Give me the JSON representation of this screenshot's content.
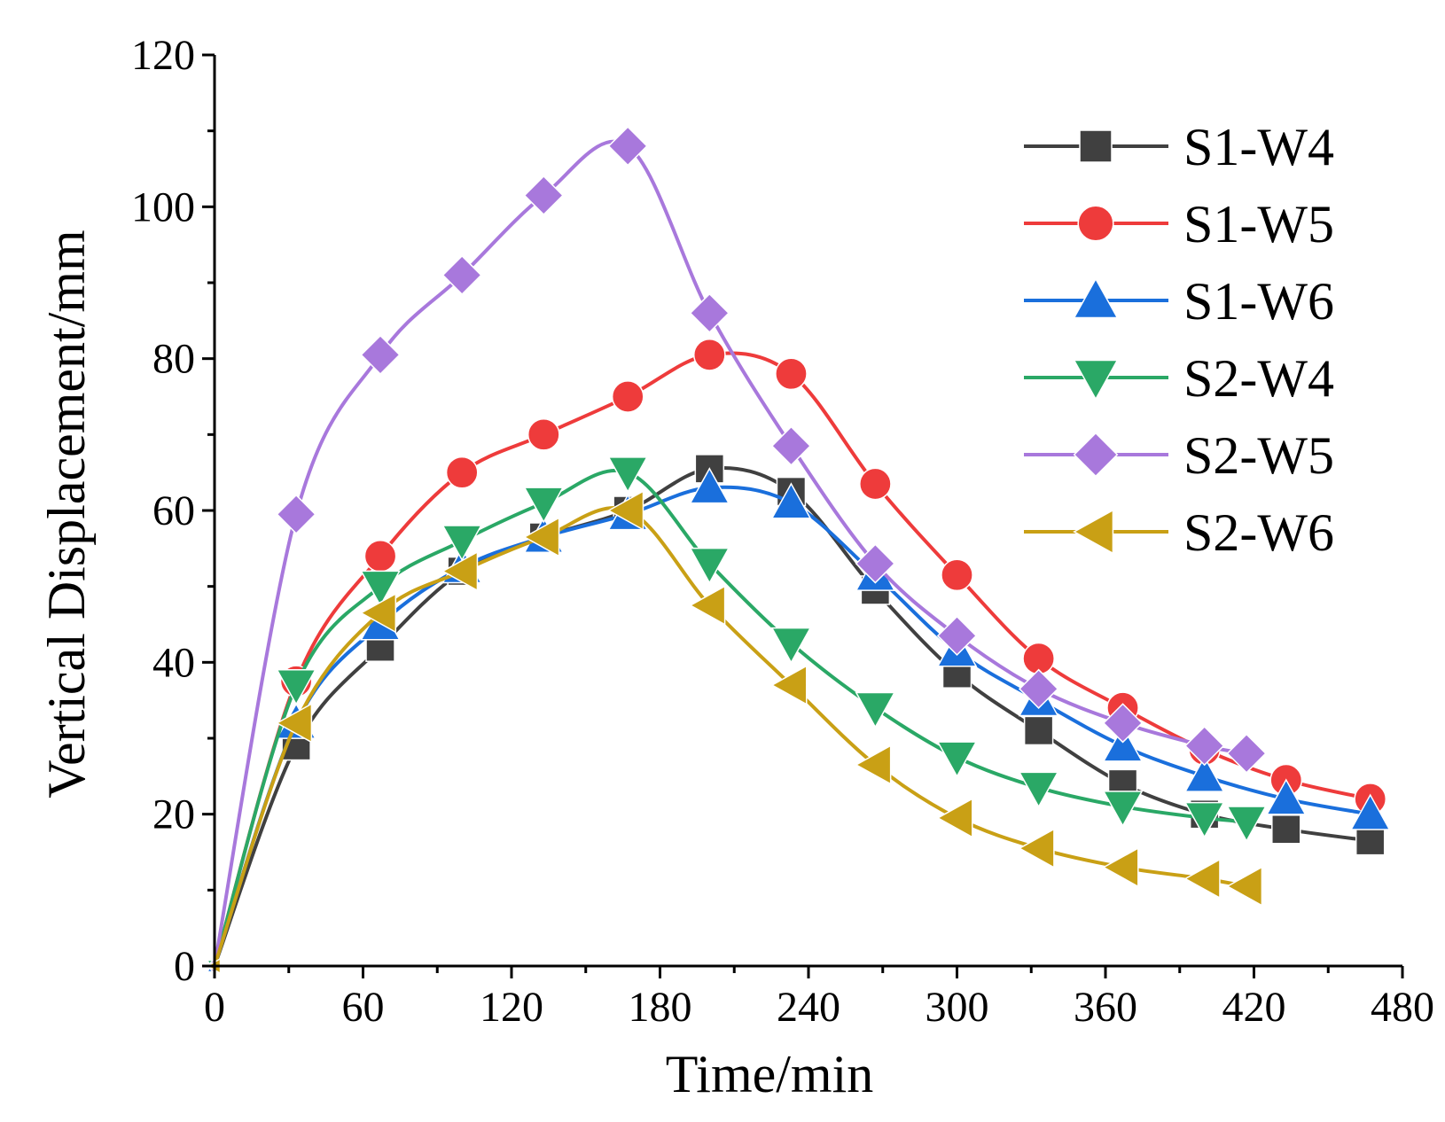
{
  "chart_data": {
    "type": "line",
    "title": "",
    "xlabel": "Time/min",
    "ylabel": "Vertical Displacement/mm",
    "xlim": [
      0,
      480
    ],
    "ylim": [
      0,
      120
    ],
    "xticks": [
      0,
      60,
      120,
      180,
      240,
      300,
      360,
      420,
      480
    ],
    "yticks": [
      0,
      20,
      40,
      60,
      80,
      100,
      120
    ],
    "xtick_labels": [
      "0",
      "60",
      "120",
      "180",
      "240",
      "300",
      "360",
      "420",
      "480"
    ],
    "ytick_labels": [
      "0",
      "20",
      "40",
      "60",
      "80",
      "100",
      "120"
    ],
    "grid": false,
    "legend_position": "top-right",
    "series": [
      {
        "name": "S1-W4",
        "color": "#404040",
        "marker": "square",
        "x": [
          0,
          33,
          67,
          100,
          133,
          167,
          200,
          233,
          267,
          300,
          333,
          367,
          400,
          433,
          467
        ],
        "y": [
          0,
          29,
          42,
          52,
          56.5,
          60,
          65.5,
          62.5,
          49.5,
          38.5,
          31,
          24,
          20,
          18,
          16.5
        ]
      },
      {
        "name": "S1-W5",
        "color": "#ee3b3b",
        "marker": "circle",
        "x": [
          0,
          33,
          67,
          100,
          133,
          167,
          200,
          233,
          267,
          300,
          333,
          367,
          400,
          433,
          467
        ],
        "y": [
          0,
          37.5,
          54,
          65,
          70,
          75,
          80.5,
          78,
          63.5,
          51.5,
          40.5,
          34,
          28.5,
          24.5,
          22
        ]
      },
      {
        "name": "S1-W6",
        "color": "#1a6fdc",
        "marker": "triangle-up",
        "x": [
          0,
          33,
          67,
          100,
          133,
          167,
          200,
          233,
          267,
          300,
          333,
          367,
          400,
          433,
          467
        ],
        "y": [
          0,
          32,
          45,
          52.5,
          56.5,
          59.5,
          63,
          61,
          51.5,
          41.5,
          35,
          29,
          25,
          22,
          20
        ]
      },
      {
        "name": "S2-W4",
        "color": "#2aa866",
        "marker": "triangle-down",
        "x": [
          0,
          33,
          67,
          100,
          133,
          167,
          200,
          233,
          267,
          300,
          333,
          367,
          400,
          417
        ],
        "y": [
          0,
          37,
          50,
          56,
          61,
          65,
          53,
          42.5,
          34,
          27.5,
          23.5,
          21,
          19.5,
          19
        ]
      },
      {
        "name": "S2-W5",
        "color": "#a878dc",
        "marker": "diamond",
        "x": [
          0,
          33,
          67,
          100,
          133,
          167,
          200,
          233,
          267,
          300,
          333,
          367,
          400,
          417
        ],
        "y": [
          0,
          59.5,
          80.5,
          91,
          101.5,
          108,
          86,
          68.5,
          53,
          43.5,
          36.5,
          32,
          29,
          28
        ]
      },
      {
        "name": "S2-W6",
        "color": "#c9a015",
        "marker": "triangle-left",
        "x": [
          0,
          33,
          67,
          100,
          133,
          167,
          200,
          233,
          267,
          300,
          333,
          367,
          400,
          417
        ],
        "y": [
          0,
          32,
          46.5,
          52,
          56.5,
          60,
          47.5,
          37,
          26.5,
          19.5,
          15.5,
          13,
          11.5,
          10.5
        ]
      }
    ]
  }
}
